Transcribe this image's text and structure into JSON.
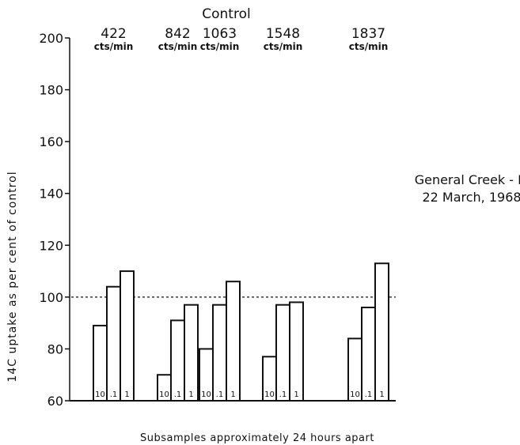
{
  "chart_data": {
    "type": "bar",
    "title": "Control",
    "ylabel": "14C uptake as per cent of control",
    "xlabel": "Subsamples approximately 24 hours apart",
    "annotation": {
      "site": "General Creek - III",
      "date": "22 March, 1968"
    },
    "ylim": [
      60,
      200
    ],
    "yticks": [
      60,
      80,
      100,
      120,
      140,
      160,
      180,
      200
    ],
    "reference_line": 100,
    "grid": false,
    "legend": "none",
    "bar_labels": [
      "10",
      ".1",
      "1"
    ],
    "groups": [
      {
        "control": "422",
        "unit": "cts/min",
        "values": [
          89,
          104,
          110
        ]
      },
      {
        "control": "842",
        "unit": "cts/min",
        "values": [
          70,
          91,
          97
        ]
      },
      {
        "control": "1063",
        "unit": "cts/min",
        "values": [
          80,
          97,
          106
        ]
      },
      {
        "control": "1548",
        "unit": "cts/min",
        "values": [
          77,
          97,
          98
        ]
      },
      {
        "control": "1837",
        "unit": "cts/min",
        "values": [
          84,
          96,
          113
        ]
      }
    ]
  }
}
